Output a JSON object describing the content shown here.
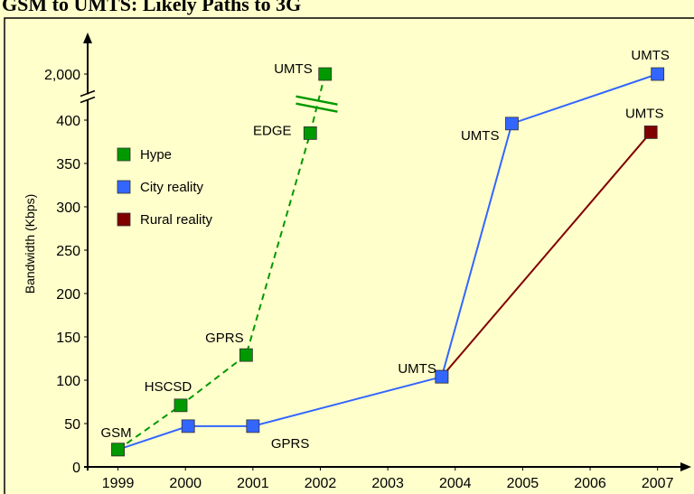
{
  "chart_data": {
    "type": "line",
    "title": "GSM to UMTS: Likely Paths to 3G",
    "y_label": "Bandwidth  (Kbps)",
    "xlim": [
      1998.55,
      2007.5
    ],
    "xticks": [
      1999,
      2000,
      2001,
      2002,
      2003,
      2004,
      2005,
      2006,
      2007
    ],
    "ylim": [
      0,
      2000
    ],
    "yticks": [
      0,
      50,
      100,
      150,
      200,
      250,
      300,
      350,
      400,
      {
        "value": 2000,
        "label": "2,000"
      }
    ],
    "y_break": [
      400,
      2000
    ],
    "series": [
      {
        "name": "Hype",
        "color": "#009900",
        "dashed": true,
        "x": [
          1999.0,
          1999.93,
          2000.9,
          2001.85,
          2002.07
        ],
        "values": [
          20,
          71,
          129,
          385,
          2000
        ],
        "labels": [
          "GSM",
          "HSCSD",
          "GPRS",
          "EDGE",
          "UMTS"
        ]
      },
      {
        "name": "City reality",
        "color": "#3366ff",
        "dashed": false,
        "x": [
          1999.0,
          2000.04,
          2001.0,
          2003.8,
          2004.84,
          2007.0
        ],
        "values": [
          20,
          47,
          47,
          104,
          396,
          2000
        ],
        "labels": [
          null,
          null,
          "GPRS",
          "UMTS",
          "UMTS",
          "UMTS"
        ]
      },
      {
        "name": "Rural reality",
        "color": "#800000",
        "dashed": false,
        "x": [
          2003.8,
          2006.9
        ],
        "values": [
          104,
          386
        ],
        "labels": [
          null,
          "UMTS"
        ]
      }
    ]
  }
}
